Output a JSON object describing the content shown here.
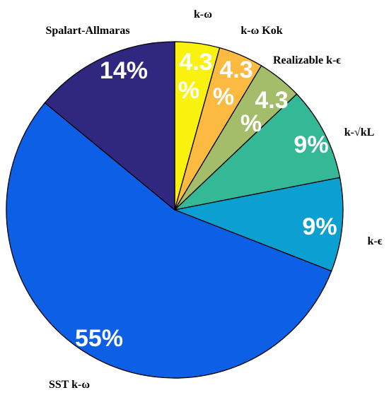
{
  "chart_data": {
    "type": "pie",
    "start": "top",
    "direction": "clockwise",
    "slices": [
      {
        "label": "k-ω",
        "value": 4.3,
        "value_label": "4.3 %",
        "color": "#f9f20f"
      },
      {
        "label": "k-ω Kok",
        "value": 4.3,
        "value_label": "4.3 %",
        "color": "#fdba41"
      },
      {
        "label": "Realizable k-ϵ",
        "value": 4.3,
        "value_label": "4.3 %",
        "color": "#a4bd6b"
      },
      {
        "label": "k-√kL",
        "value": 9,
        "value_label": "9%",
        "color": "#34b896"
      },
      {
        "label": "k-ϵ",
        "value": 9,
        "value_label": "9%",
        "color": "#0c9fd2"
      },
      {
        "label": "SST k-ω",
        "value": 55,
        "value_label": "55%",
        "color": "#0d60e5"
      },
      {
        "label": "Spalart-Allmaras",
        "value": 14,
        "value_label": "14%",
        "color": "#302780"
      }
    ]
  }
}
